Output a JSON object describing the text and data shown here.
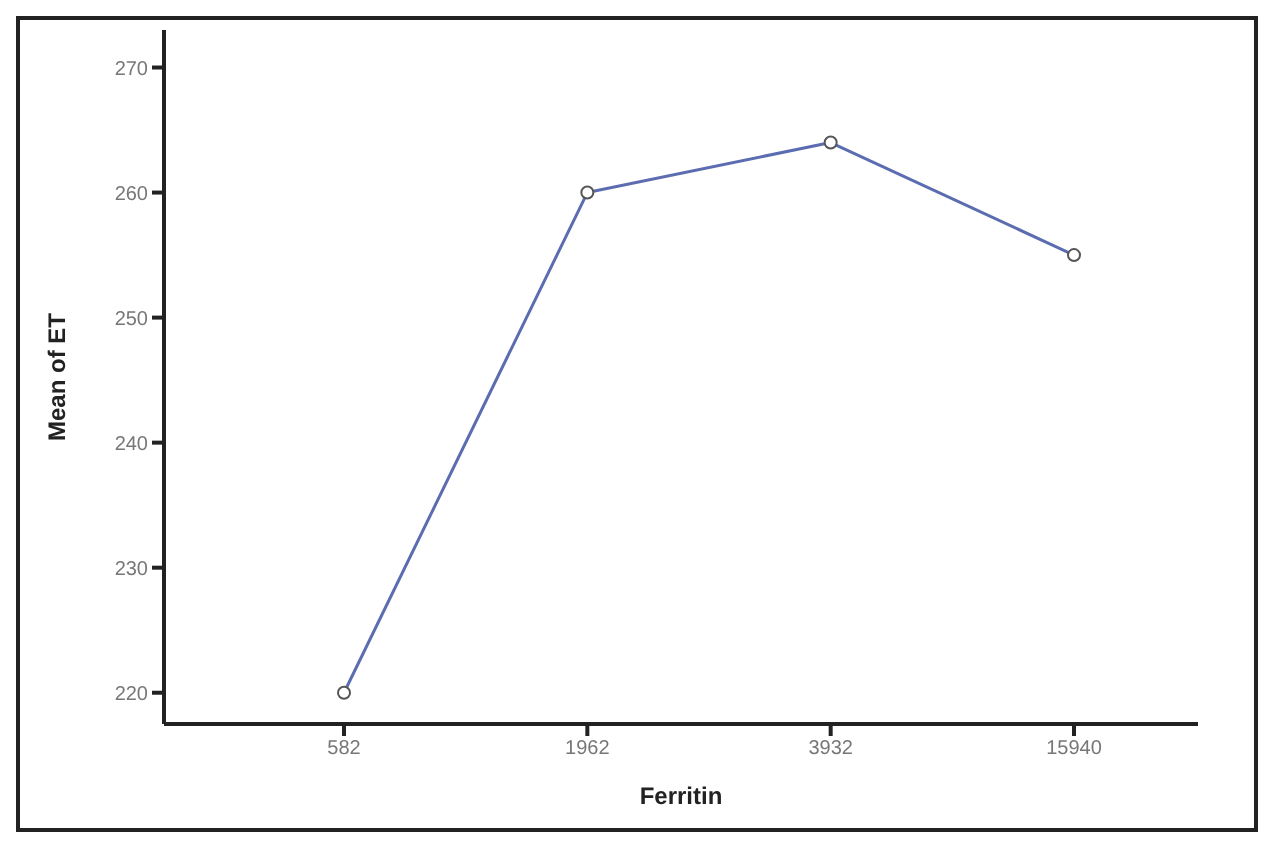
{
  "chart_data": {
    "type": "line",
    "xlabel": "Ferritin",
    "ylabel": "Mean of ET",
    "categories": [
      "582",
      "1962",
      "3932",
      "15940"
    ],
    "series": [
      {
        "color": "#5b6db0",
        "values": [
          220,
          260,
          264,
          255
        ]
      }
    ],
    "ylim": [
      217.5,
      273
    ],
    "yticks": [
      220,
      230,
      240,
      250,
      260,
      270
    ],
    "grid": false,
    "legend": false,
    "marker": "circle",
    "line_style": "solid"
  }
}
